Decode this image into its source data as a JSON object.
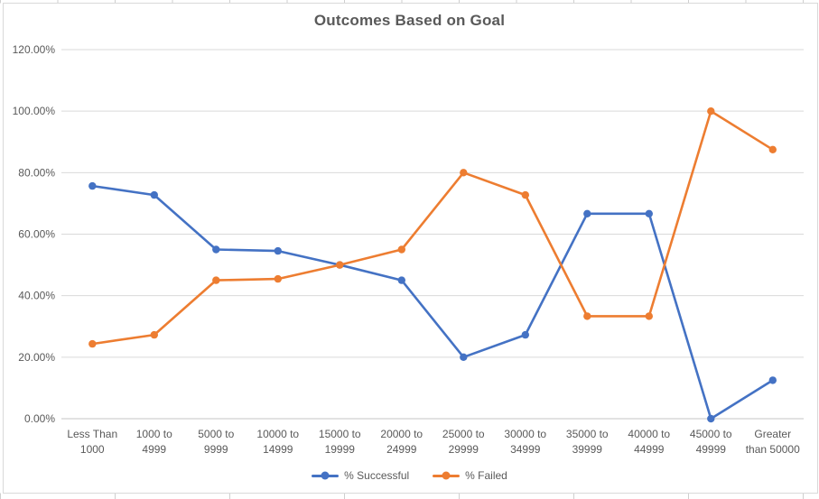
{
  "chart_data": {
    "type": "line",
    "title": "Outcomes Based on Goal",
    "categories": [
      "Less Than 1000",
      "1000 to 4999",
      "5000 to 9999",
      "10000 to 14999",
      "15000 to 19999",
      "20000 to 24999",
      "25000 to 29999",
      "30000 to 34999",
      "35000 to 39999",
      "40000 to 44999",
      "45000 to 49999",
      "Greater than 50000"
    ],
    "category_label_lines": [
      [
        "Less Than",
        "1000"
      ],
      [
        "1000 to",
        "4999"
      ],
      [
        "5000 to",
        "9999"
      ],
      [
        "10000 to",
        "14999"
      ],
      [
        "15000 to",
        "19999"
      ],
      [
        "20000 to",
        "24999"
      ],
      [
        "25000 to",
        "29999"
      ],
      [
        "30000 to",
        "34999"
      ],
      [
        "35000 to",
        "39999"
      ],
      [
        "40000 to",
        "44999"
      ],
      [
        "45000 to",
        "49999"
      ],
      [
        "Greater",
        "than 50000"
      ]
    ],
    "series": [
      {
        "name": "% Successful",
        "color": "#4472C4",
        "values": [
          75.68,
          72.73,
          55.0,
          54.55,
          50.0,
          45.0,
          20.0,
          27.27,
          66.67,
          66.67,
          0.0,
          12.5
        ]
      },
      {
        "name": "% Failed",
        "color": "#ED7D31",
        "values": [
          24.32,
          27.27,
          45.0,
          45.45,
          50.0,
          55.0,
          80.0,
          72.73,
          33.33,
          33.33,
          100.0,
          87.5
        ]
      }
    ],
    "ylim": [
      0,
      120
    ],
    "ytick_step": 20,
    "ytick_labels": [
      "0.00%",
      "20.00%",
      "40.00%",
      "60.00%",
      "80.00%",
      "100.00%",
      "120.00%"
    ],
    "xlabel": "",
    "ylabel": "",
    "grid": true,
    "legend_position": "bottom",
    "marker": "circle"
  },
  "colors": {
    "grid_line": "#D9D9D9",
    "axis_line": "#C6C6C6",
    "chart_border": "#D9D9D9",
    "spreadsheet_tick": "#CFCFCF",
    "text": "#595959",
    "background": "#FFFFFF"
  }
}
